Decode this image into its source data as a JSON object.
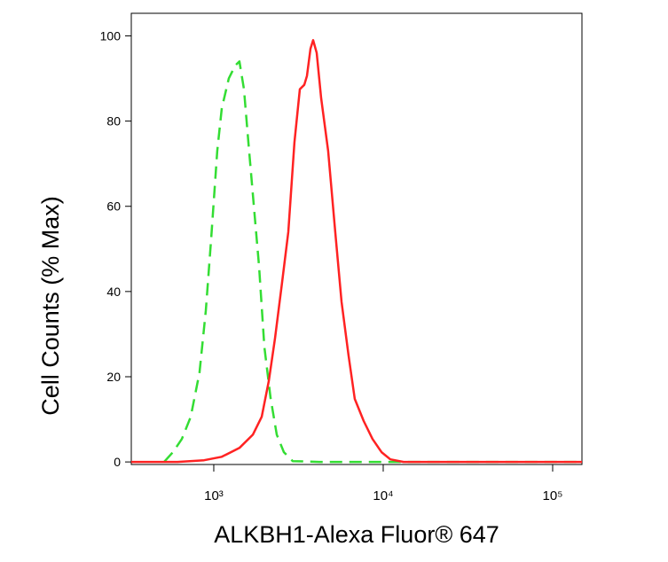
{
  "chart_data": {
    "type": "line",
    "xlabel": "ALKBH1-Alexa Fluor® 647",
    "ylabel": "Cell Counts (% Max)",
    "xscale": "log",
    "xlim": [
      326,
      148900
    ],
    "ylim": [
      -0.6,
      105.3
    ],
    "xticks": [
      {
        "value": 1000,
        "label": "10³"
      },
      {
        "value": 10000,
        "label": "10⁴"
      },
      {
        "value": 100000,
        "label": "10⁵"
      }
    ],
    "yticks": [
      0,
      20,
      40,
      60,
      80,
      100
    ],
    "series": [
      {
        "color": "#33dd33",
        "dashed": true,
        "x": [
          509,
          574,
          648,
          731,
          824,
          897,
          964,
          1049,
          1115,
          1227,
          1336,
          1418,
          1507,
          1600,
          1741,
          1849,
          1988,
          2164,
          2354,
          2592,
          2924,
          4198,
          148900
        ],
        "values": [
          0,
          2.3,
          5.4,
          10.6,
          21,
          35.5,
          52,
          73,
          83,
          90,
          93,
          94,
          87.5,
          75,
          58,
          46,
          27,
          15,
          6.4,
          2.3,
          0.2,
          0,
          0
        ]
      },
      {
        "color": "#ff2222",
        "dashed": false,
        "x": [
          326,
          610,
          876,
          1115,
          1418,
          1700,
          1918,
          2113,
          2297,
          2529,
          2754,
          2994,
          3219,
          3420,
          3548,
          3724,
          3858,
          4048,
          4302,
          4733,
          5210,
          5673,
          6246,
          6793,
          7674,
          8650,
          9772,
          11015,
          13183,
          148900
        ],
        "values": [
          0,
          0,
          0.4,
          1.2,
          3.3,
          6.4,
          10.6,
          19,
          29,
          42,
          54,
          75,
          87.5,
          88.5,
          90.6,
          97,
          99,
          96,
          85.4,
          73,
          54,
          37.6,
          25,
          14.8,
          9.6,
          5.4,
          2.3,
          0.6,
          0,
          0
        ]
      }
    ]
  }
}
